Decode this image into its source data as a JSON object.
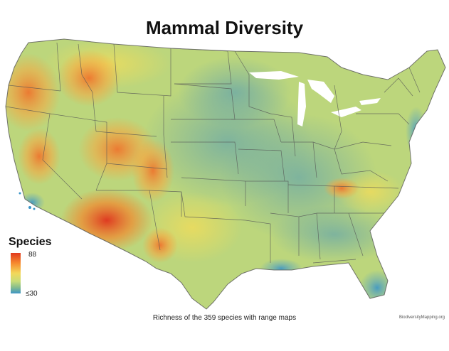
{
  "title": "Mammal Diversity",
  "legend": {
    "title": "Species",
    "max_label": "88",
    "min_label": "≤30",
    "colors": [
      "#e23a1e",
      "#f6892e",
      "#f3d85a",
      "#c8dc78",
      "#86bd8c",
      "#3e96c6"
    ]
  },
  "caption": "Richness of the 359 species with range maps",
  "credit": "BiodiversityMapping.org",
  "palette": {
    "high": "#e8361d",
    "orange": "#f59431",
    "yellow": "#ece766",
    "green": "#b9d67a",
    "teal": "#7cb6a0",
    "blue": "#3b95c8",
    "lakes": "#ffffff",
    "borders": "#555555"
  }
}
